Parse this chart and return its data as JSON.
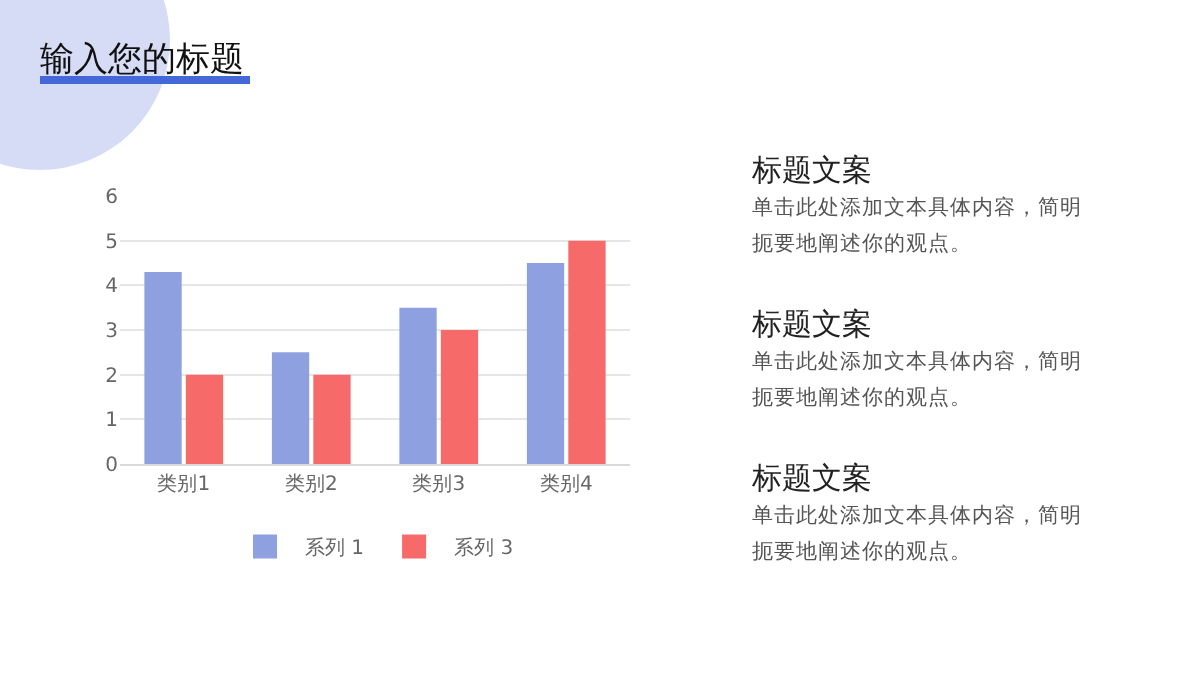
{
  "chart_data": {
    "type": "bar",
    "title": "输入您的标题",
    "categories": [
      "类别1",
      "类别2",
      "类别3",
      "类别4"
    ],
    "series": [
      {
        "name": "系列 1",
        "color": "#8fa0e0",
        "values": [
          4.3,
          2.5,
          3.5,
          4.5
        ]
      },
      {
        "name": "系列 3",
        "color": "#f76a6a",
        "values": [
          2,
          2,
          3,
          5
        ]
      }
    ],
    "ylim": [
      0,
      6
    ],
    "yticks": [
      0,
      1,
      2,
      3,
      4,
      5,
      6
    ],
    "grid": "y",
    "legend": "bottom",
    "annotations": [
      "标题文案",
      "单击此处添加文本具体内容，简明扼要地阐述你的观点。",
      "标题文案",
      "单击此处添加文本具体内容，简明扼要地阐述你的观点。",
      "标题文案",
      "单击此处添加文本具体内容，简明扼要地阐述你的观点。"
    ]
  }
}
